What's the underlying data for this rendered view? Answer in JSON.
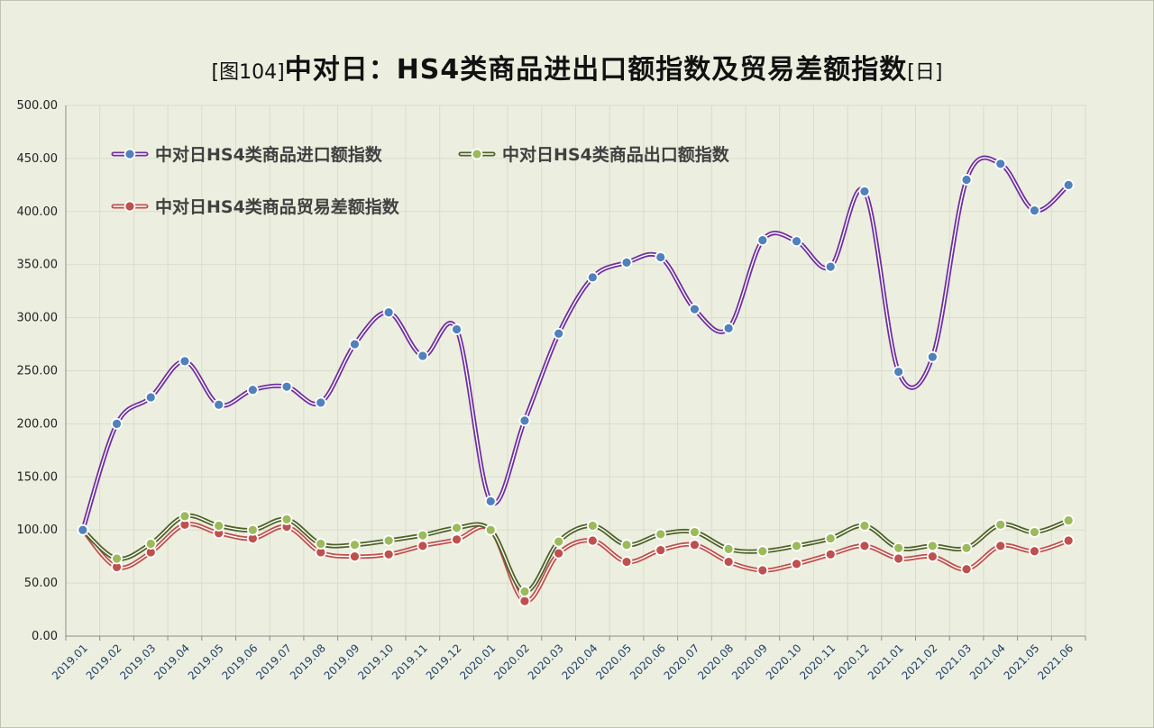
{
  "title": {
    "prefix": "[图104]",
    "main": "中对日：HS4类商品进出口额指数及贸易差额指数",
    "suffix": "[日]"
  },
  "chart_data": {
    "type": "line",
    "categories": [
      "2019.01",
      "2019.02",
      "2019.03",
      "2019.04",
      "2019.05",
      "2019.06",
      "2019.07",
      "2019.08",
      "2019.09",
      "2019.10",
      "2019.11",
      "2019.12",
      "2020.01",
      "2020.02",
      "2020.03",
      "2020.04",
      "2020.05",
      "2020.06",
      "2020.07",
      "2020.08",
      "2020.09",
      "2020.10",
      "2020.11",
      "2020.12",
      "2021.01",
      "2021.02",
      "2021.03",
      "2021.04",
      "2021.05",
      "2021.06"
    ],
    "series": [
      {
        "name": "中对日HS4类商品进口额指数",
        "line_color": "#7030A0",
        "marker_color": "#4F81BD",
        "values": [
          100,
          200,
          225,
          259,
          218,
          232,
          235,
          220,
          275,
          305,
          264,
          289,
          127,
          203,
          285,
          338,
          352,
          357,
          308,
          290,
          373,
          372,
          348,
          419,
          249,
          263,
          430,
          445,
          401,
          425
        ]
      },
      {
        "name": "中对日HS4类商品出口额指数",
        "line_color": "#4F6228",
        "marker_color": "#9BBB59",
        "values": [
          100,
          73,
          87,
          113,
          104,
          100,
          110,
          87,
          86,
          90,
          95,
          102,
          100,
          42,
          89,
          104,
          86,
          96,
          98,
          82,
          80,
          85,
          92,
          104,
          83,
          85,
          83,
          105,
          98,
          109
        ]
      },
      {
        "name": "中对日HS4类商品贸易差额指数",
        "line_color": "#C0504D",
        "marker_color": "#C0504D",
        "values": [
          100,
          65,
          79,
          105,
          97,
          92,
          103,
          79,
          75,
          77,
          85,
          91,
          100,
          33,
          78,
          90,
          70,
          81,
          86,
          70,
          62,
          68,
          77,
          85,
          73,
          75,
          63,
          85,
          80,
          90
        ]
      }
    ],
    "ylim": [
      0,
      500
    ],
    "yticks": [
      "0.00",
      "50.00",
      "100.00",
      "150.00",
      "200.00",
      "250.00",
      "300.00",
      "350.00",
      "400.00",
      "450.00",
      "500.00"
    ],
    "grid": true,
    "legend_position": "top-left"
  }
}
